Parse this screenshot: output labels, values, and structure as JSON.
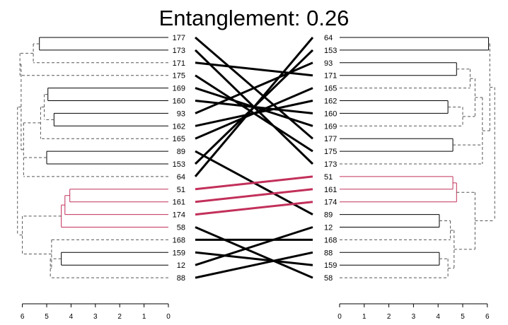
{
  "chart_data": {
    "type": "tanglegram",
    "title": "Entanglement: 0.26",
    "colors": {
      "tree": "#000000",
      "dashed": "#555555",
      "highlight": "#c2305a",
      "line": "#000000"
    },
    "left_leaves": [
      "177",
      "173",
      "171",
      "175",
      "169",
      "160",
      "93",
      "162",
      "165",
      "89",
      "153",
      "64",
      "51",
      "161",
      "174",
      "58",
      "168",
      "159",
      "12",
      "88"
    ],
    "right_leaves": [
      "64",
      "153",
      "93",
      "171",
      "165",
      "162",
      "160",
      "169",
      "177",
      "175",
      "173",
      "51",
      "161",
      "174",
      "89",
      "12",
      "168",
      "88",
      "159",
      "58"
    ],
    "left_axis": {
      "ticks": [
        6,
        5,
        4,
        3,
        2,
        1,
        0
      ]
    },
    "right_axis": {
      "ticks": [
        0,
        1,
        2,
        3,
        4,
        5,
        6
      ]
    },
    "left_tree": {
      "h": 6.2,
      "d": true,
      "c": [
        {
          "h": 6.05,
          "d": true,
          "c": [
            {
              "h": 6.1,
              "d": true,
              "c": [
                {
                  "h": 5.55,
                  "d": true,
                  "c": [
                    {
                      "h": 5.3,
                      "c": [
                        {
                          "l": "177"
                        },
                        {
                          "l": "173"
                        }
                      ]
                    },
                    {
                      "l": "171"
                    }
                  ]
                },
                {
                  "l": "175"
                }
              ]
            },
            {
              "h": 5.95,
              "d": true,
              "c": [
                {
                  "h": 5.25,
                  "d": true,
                  "c": [
                    {
                      "h": 5.1,
                      "d": true,
                      "c": [
                        {
                          "h": 4.95,
                          "c": [
                            {
                              "l": "169"
                            },
                            {
                              "l": "160"
                            }
                          ]
                        },
                        {
                          "h": 4.7,
                          "c": [
                            {
                              "l": "93"
                            },
                            {
                              "l": "162"
                            }
                          ]
                        }
                      ]
                    },
                    {
                      "l": "165"
                    }
                  ]
                },
                {
                  "h": 5.0,
                  "c": [
                    {
                      "l": "89"
                    },
                    {
                      "l": "153"
                    }
                  ]
                },
                {
                  "l": "64"
                }
              ]
            }
          ]
        },
        {
          "h": 6.0,
          "d": true,
          "c": [
            {
              "h": 4.4,
              "hl": true,
              "c": [
                {
                  "h": 4.25,
                  "hl": true,
                  "c": [
                    {
                      "h": 4.05,
                      "hl": true,
                      "c": [
                        {
                          "l": "51"
                        },
                        {
                          "l": "161"
                        }
                      ]
                    },
                    {
                      "l": "174"
                    }
                  ]
                },
                {
                  "l": "58"
                }
              ]
            },
            {
              "h": 4.8,
              "d": true,
              "c": [
                {
                  "l": "168"
                },
                {
                  "h": 4.85,
                  "d": true,
                  "c": [
                    {
                      "h": 4.4,
                      "c": [
                        {
                          "l": "159"
                        },
                        {
                          "l": "12"
                        }
                      ]
                    },
                    {
                      "l": "88"
                    }
                  ]
                }
              ]
            }
          ]
        }
      ]
    },
    "right_tree": {
      "h": 6.3,
      "d": true,
      "c": [
        {
          "h": 6.1,
          "d": true,
          "c": [
            {
              "h": 6.05,
              "c": [
                {
                  "l": "64"
                },
                {
                  "l": "153"
                }
              ]
            },
            {
              "h": 5.8,
              "d": true,
              "c": [
                {
                  "h": 5.5,
                  "d": true,
                  "c": [
                    {
                      "h": 5.3,
                      "d": true,
                      "c": [
                        {
                          "h": 4.75,
                          "c": [
                            {
                              "l": "93"
                            },
                            {
                              "l": "171"
                            }
                          ]
                        },
                        {
                          "l": "165"
                        }
                      ]
                    },
                    {
                      "h": 5.0,
                      "d": true,
                      "c": [
                        {
                          "h": 4.4,
                          "c": [
                            {
                              "l": "162"
                            },
                            {
                              "l": "160"
                            }
                          ]
                        },
                        {
                          "l": "169"
                        }
                      ]
                    }
                  ]
                },
                {
                  "h": 4.6,
                  "c": [
                    {
                      "l": "177"
                    },
                    {
                      "l": "175"
                    }
                  ]
                },
                {
                  "l": "173"
                }
              ]
            }
          ]
        },
        {
          "h": 5.5,
          "d": true,
          "c": [
            {
              "h": 4.75,
              "hl": true,
              "c": [
                {
                  "h": 4.6,
                  "hl": true,
                  "c": [
                    {
                      "l": "51"
                    },
                    {
                      "l": "161"
                    }
                  ]
                },
                {
                  "l": "174"
                }
              ]
            },
            {
              "h": 4.65,
              "d": true,
              "c": [
                {
                  "h": 4.5,
                  "d": true,
                  "c": [
                    {
                      "h": 4.05,
                      "c": [
                        {
                          "l": "89"
                        },
                        {
                          "l": "12"
                        }
                      ]
                    },
                    {
                      "l": "168"
                    }
                  ]
                },
                {
                  "h": 4.4,
                  "d": true,
                  "c": [
                    {
                      "h": 4.05,
                      "c": [
                        {
                          "l": "88"
                        },
                        {
                          "l": "159"
                        }
                      ]
                    },
                    {
                      "l": "58"
                    }
                  ]
                }
              ]
            }
          ]
        }
      ]
    },
    "highlight_leaves": [
      "51",
      "161",
      "174"
    ]
  }
}
